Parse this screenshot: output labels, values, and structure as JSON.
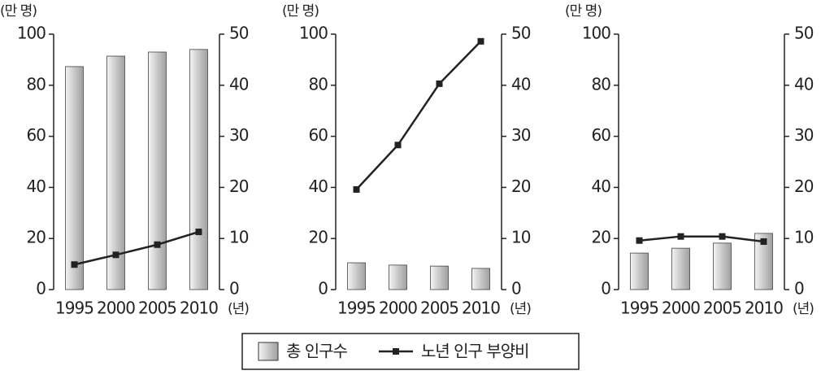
{
  "chart_data": [
    {
      "type": "bar-line",
      "y_label": "(만 명)",
      "x_label": "(년)",
      "categories": [
        "1995",
        "2000",
        "2005",
        "2010"
      ],
      "series": [
        {
          "name": "총 인구수",
          "type": "bar",
          "color": "#b8b8b8",
          "values": [
            87.3,
            91.4,
            93,
            94
          ]
        },
        {
          "name": "노년 인구 부양비",
          "type": "line",
          "color": "#222222",
          "axis": "y2",
          "values": [
            4.9,
            6.8,
            8.8,
            11.3
          ]
        }
      ],
      "ylim": [
        0,
        100
      ],
      "yticks": [
        0,
        20,
        40,
        60,
        80,
        100
      ],
      "y2lim": [
        0,
        50
      ],
      "y2ticks": [
        0,
        10,
        20,
        30,
        40,
        50
      ]
    },
    {
      "type": "bar-line",
      "y_label": "(만 명)",
      "x_label": "(년)",
      "categories": [
        "1995",
        "2000",
        "2005",
        "2010"
      ],
      "series": [
        {
          "type": "bar",
          "color": "#b8b8b8",
          "values": [
            10.5,
            9.6,
            9.2,
            8.3
          ]
        },
        {
          "type": "line",
          "color": "#222222",
          "axis": "y2",
          "values": [
            19.6,
            28.3,
            40.3,
            48.6
          ]
        }
      ],
      "ylim": [
        0,
        100
      ],
      "yticks": [
        0,
        20,
        40,
        60,
        80,
        100
      ],
      "y2lim": [
        0,
        50
      ],
      "y2ticks": [
        0,
        10,
        20,
        30,
        40,
        50
      ]
    },
    {
      "type": "bar-line",
      "y_label": "(만 명)",
      "x_label": "(년)",
      "categories": [
        "1995",
        "2000",
        "2005",
        "2010"
      ],
      "series": [
        {
          "type": "bar",
          "color": "#b8b8b8",
          "values": [
            14.3,
            16.2,
            18.2,
            22
          ]
        },
        {
          "type": "line",
          "color": "#222222",
          "axis": "y2",
          "values": [
            9.6,
            10.4,
            10.4,
            9.4
          ]
        }
      ],
      "ylim": [
        0,
        100
      ],
      "yticks": [
        0,
        20,
        40,
        60,
        80,
        100
      ],
      "y2lim": [
        0,
        50
      ],
      "y2ticks": [
        0,
        10,
        20,
        30,
        40,
        50
      ]
    }
  ]
}
